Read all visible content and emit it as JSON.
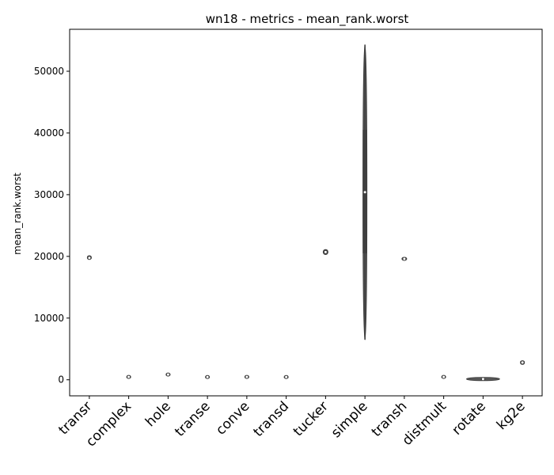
{
  "chart_data": {
    "type": "violin",
    "title": "wn18 - metrics - mean_rank.worst",
    "xlabel": "",
    "ylabel": "mean_rank.worst",
    "ylim": [
      -2600,
      56800
    ],
    "yticks": [
      0,
      10000,
      20000,
      30000,
      40000,
      50000
    ],
    "grid": false,
    "color": "#5a5a5a",
    "categories": [
      "transr",
      "complex",
      "hole",
      "transe",
      "conve",
      "transd",
      "tucker",
      "simple",
      "transh",
      "distmult",
      "rotate",
      "kg2e"
    ],
    "series": [
      {
        "category": "transr",
        "min": 19500,
        "q1": 19600,
        "median": 19750,
        "q3": 20000,
        "max": 20100,
        "halfwidth": 0.05
      },
      {
        "category": "complex",
        "min": 400,
        "q1": 430,
        "median": 460,
        "q3": 500,
        "max": 520,
        "halfwidth": 0.04
      },
      {
        "category": "hole",
        "min": 600,
        "q1": 700,
        "median": 850,
        "q3": 1000,
        "max": 1100,
        "halfwidth": 0.05
      },
      {
        "category": "transe",
        "min": 380,
        "q1": 420,
        "median": 450,
        "q3": 490,
        "max": 520,
        "halfwidth": 0.04
      },
      {
        "category": "conve",
        "min": 400,
        "q1": 430,
        "median": 470,
        "q3": 520,
        "max": 540,
        "halfwidth": 0.05
      },
      {
        "category": "transd",
        "min": 380,
        "q1": 420,
        "median": 450,
        "q3": 490,
        "max": 510,
        "halfwidth": 0.04
      },
      {
        "category": "tucker",
        "min": 20300,
        "q1": 20500,
        "median": 20700,
        "q3": 21000,
        "max": 21100,
        "halfwidth": 0.06
      },
      {
        "category": "simple",
        "min": 6500,
        "q1": 20500,
        "median": 30400,
        "q3": 40500,
        "max": 54300,
        "halfwidth": 0.035
      },
      {
        "category": "transh",
        "min": 19400,
        "q1": 19500,
        "median": 19600,
        "q3": 19700,
        "max": 19800,
        "halfwidth": 0.06
      },
      {
        "category": "distmult",
        "min": 400,
        "q1": 440,
        "median": 470,
        "q3": 500,
        "max": 530,
        "halfwidth": 0.05
      },
      {
        "category": "rotate",
        "min": 60,
        "q1": 90,
        "median": 120,
        "q3": 150,
        "max": 180,
        "halfwidth": 0.42
      },
      {
        "category": "kg2e",
        "min": 2500,
        "q1": 2600,
        "median": 2800,
        "q3": 3000,
        "max": 3100,
        "halfwidth": 0.05
      }
    ]
  }
}
